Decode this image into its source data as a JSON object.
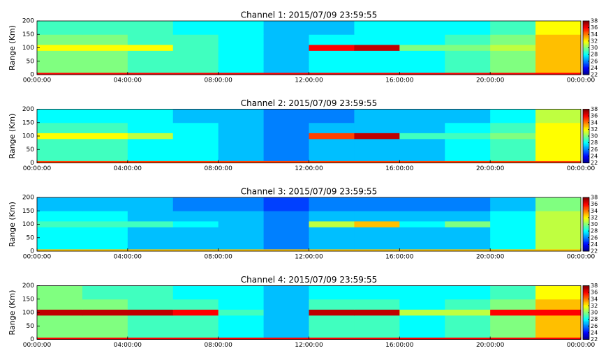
{
  "chart_data": [
    {
      "type": "heatmap",
      "title": "Channel 1: 2015/07/09 23:59:55",
      "ylabel": "Range (Km)",
      "xlim": [
        0,
        24
      ],
      "xticks": [
        {
          "value": 0,
          "label": "00:00:00"
        },
        {
          "value": 4,
          "label": "04:00:00"
        },
        {
          "value": 8,
          "label": "08:00:00"
        },
        {
          "value": 12,
          "label": "12:00:00"
        },
        {
          "value": 16,
          "label": "16:00:00"
        },
        {
          "value": 20,
          "label": "20:00:00"
        },
        {
          "value": 24,
          "label": "00:00:00"
        }
      ],
      "ylim": [
        0,
        200
      ],
      "yticks": [
        0,
        50,
        100,
        150,
        200
      ],
      "xbins": [
        0,
        2,
        4,
        6,
        8,
        10,
        12,
        14,
        16,
        18,
        20,
        22,
        24
      ],
      "ybins": [
        0,
        8,
        50,
        90,
        112,
        150,
        200
      ],
      "values": [
        [
          36,
          36,
          36,
          36,
          36,
          36,
          36,
          36,
          36,
          36,
          36,
          36
        ],
        [
          30,
          30,
          29,
          29,
          28,
          27,
          28,
          28,
          28,
          29,
          30,
          33
        ],
        [
          30,
          30,
          29,
          29,
          28,
          27,
          28,
          28,
          28,
          29,
          30,
          33
        ],
        [
          32,
          32,
          32,
          29,
          28,
          27,
          36,
          37,
          30,
          30,
          31,
          33
        ],
        [
          30,
          30,
          29,
          29,
          28,
          27,
          28,
          28,
          28,
          29,
          30,
          33
        ],
        [
          29,
          29,
          29,
          28,
          28,
          27,
          27,
          28,
          28,
          28,
          29,
          32
        ]
      ],
      "colormap": "jet",
      "clim": [
        22,
        38
      ],
      "cticks": [
        22,
        24,
        26,
        28,
        30,
        32,
        34,
        36,
        38
      ]
    },
    {
      "type": "heatmap",
      "title": "Channel 2: 2015/07/09 23:59:55",
      "ylabel": "Range (Km)",
      "xlim": [
        0,
        24
      ],
      "xticks": [
        {
          "value": 0,
          "label": "00:00:00"
        },
        {
          "value": 4,
          "label": "04:00:00"
        },
        {
          "value": 8,
          "label": "08:00:00"
        },
        {
          "value": 12,
          "label": "12:00:00"
        },
        {
          "value": 16,
          "label": "16:00:00"
        },
        {
          "value": 20,
          "label": "20:00:00"
        },
        {
          "value": 24,
          "label": "00:00:00"
        }
      ],
      "ylim": [
        0,
        200
      ],
      "yticks": [
        0,
        50,
        100,
        150,
        200
      ],
      "xbins": [
        0,
        2,
        4,
        6,
        8,
        10,
        12,
        14,
        16,
        18,
        20,
        22,
        24
      ],
      "ybins": [
        0,
        8,
        50,
        90,
        112,
        150,
        200
      ],
      "values": [
        [
          35,
          35,
          35,
          35,
          35,
          35,
          35,
          35,
          35,
          35,
          35,
          35
        ],
        [
          29,
          29,
          28,
          28,
          27,
          26,
          27,
          27,
          27,
          28,
          29,
          32
        ],
        [
          29,
          29,
          28,
          28,
          27,
          26,
          27,
          27,
          27,
          28,
          29,
          32
        ],
        [
          32,
          32,
          31,
          28,
          27,
          26,
          35,
          37,
          29,
          29,
          30,
          32
        ],
        [
          29,
          29,
          28,
          28,
          27,
          26,
          27,
          27,
          27,
          28,
          29,
          32
        ],
        [
          28,
          28,
          28,
          27,
          27,
          26,
          26,
          27,
          27,
          27,
          28,
          31
        ]
      ],
      "colormap": "jet",
      "clim": [
        22,
        38
      ],
      "cticks": [
        22,
        24,
        26,
        28,
        30,
        32,
        34,
        36,
        38
      ]
    },
    {
      "type": "heatmap",
      "title": "Channel 3: 2015/07/09 23:59:55",
      "ylabel": "Range (Km)",
      "xlim": [
        0,
        24
      ],
      "xticks": [
        {
          "value": 0,
          "label": "00:00:00"
        },
        {
          "value": 4,
          "label": "04:00:00"
        },
        {
          "value": 8,
          "label": "08:00:00"
        },
        {
          "value": 12,
          "label": "12:00:00"
        },
        {
          "value": 16,
          "label": "16:00:00"
        },
        {
          "value": 20,
          "label": "20:00:00"
        },
        {
          "value": 24,
          "label": "00:00:00"
        }
      ],
      "ylim": [
        0,
        200
      ],
      "yticks": [
        0,
        50,
        100,
        150,
        200
      ],
      "xbins": [
        0,
        2,
        4,
        6,
        8,
        10,
        12,
        14,
        16,
        18,
        20,
        22,
        24
      ],
      "ybins": [
        0,
        8,
        50,
        90,
        112,
        150,
        200
      ],
      "values": [
        [
          33,
          33,
          33,
          33,
          33,
          33,
          33,
          33,
          33,
          33,
          33,
          33
        ],
        [
          28,
          28,
          27,
          27,
          27,
          26,
          27,
          27,
          27,
          27,
          28,
          31
        ],
        [
          28,
          28,
          27,
          27,
          27,
          26,
          27,
          27,
          27,
          27,
          28,
          31
        ],
        [
          29,
          29,
          29,
          28,
          27,
          26,
          31,
          33,
          28,
          30,
          28,
          31
        ],
        [
          28,
          28,
          27,
          27,
          27,
          26,
          27,
          27,
          27,
          27,
          28,
          31
        ],
        [
          27,
          27,
          27,
          26,
          26,
          25,
          26,
          26,
          26,
          26,
          27,
          30
        ]
      ],
      "colormap": "jet",
      "clim": [
        22,
        38
      ],
      "cticks": [
        22,
        24,
        26,
        28,
        30,
        32,
        34,
        36,
        38
      ]
    },
    {
      "type": "heatmap",
      "title": "Channel 4: 2015/07/09 23:59:55",
      "ylabel": "Range (Km)",
      "xlim": [
        0,
        24
      ],
      "xticks": [
        {
          "value": 0,
          "label": "00:00:00"
        },
        {
          "value": 4,
          "label": "04:00:00"
        },
        {
          "value": 8,
          "label": "08:00:00"
        },
        {
          "value": 12,
          "label": "12:00:00"
        },
        {
          "value": 16,
          "label": "16:00:00"
        },
        {
          "value": 20,
          "label": "20:00:00"
        },
        {
          "value": 24,
          "label": "00:00:00"
        }
      ],
      "ylim": [
        0,
        200
      ],
      "yticks": [
        0,
        50,
        100,
        150,
        200
      ],
      "xbins": [
        0,
        2,
        4,
        6,
        8,
        10,
        12,
        14,
        16,
        18,
        20,
        22,
        24
      ],
      "ybins": [
        0,
        8,
        50,
        90,
        112,
        150,
        200
      ],
      "values": [
        [
          36,
          36,
          36,
          36,
          36,
          36,
          36,
          36,
          36,
          36,
          36,
          36
        ],
        [
          30,
          30,
          29,
          29,
          28,
          27,
          29,
          29,
          28,
          29,
          30,
          33
        ],
        [
          30,
          30,
          29,
          29,
          28,
          27,
          29,
          29,
          28,
          29,
          30,
          33
        ],
        [
          37,
          37,
          37,
          36,
          29,
          27,
          37,
          37,
          31,
          31,
          36,
          36
        ],
        [
          30,
          30,
          29,
          29,
          28,
          27,
          29,
          29,
          28,
          29,
          30,
          33
        ],
        [
          30,
          29,
          29,
          28,
          28,
          27,
          28,
          28,
          28,
          28,
          29,
          32
        ]
      ],
      "colormap": "jet",
      "clim": [
        22,
        38
      ],
      "cticks": [
        22,
        24,
        26,
        28,
        30,
        32,
        34,
        36,
        38
      ]
    }
  ]
}
